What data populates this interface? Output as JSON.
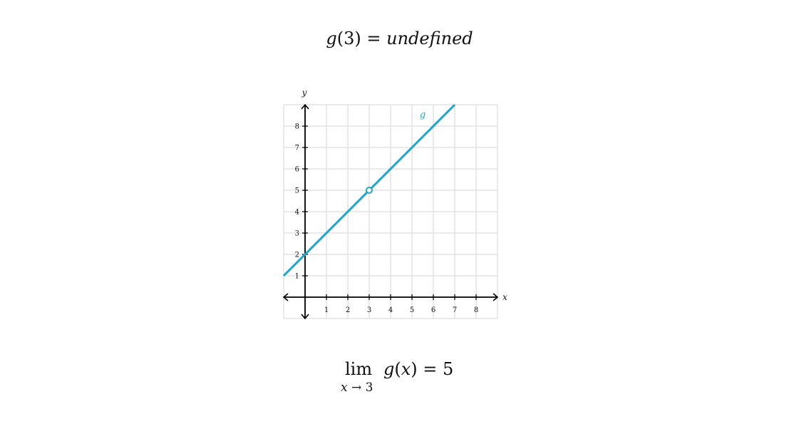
{
  "equations": {
    "top": {
      "func": "g",
      "arg": "3",
      "equals": "=",
      "value": "undefined"
    },
    "bottom": {
      "lim": "lim",
      "var": "x",
      "arrow": "→",
      "approach": "3",
      "func": "g",
      "arg": "x",
      "equals": "=",
      "value": "5"
    }
  },
  "colors": {
    "line": "#1ea6c8",
    "grid": "#e3e3e3",
    "axis": "#000000"
  },
  "chart_data": {
    "type": "line",
    "xlabel": "x",
    "ylabel": "y",
    "xlim": [
      -1,
      9
    ],
    "ylim": [
      -1,
      9
    ],
    "x_ticks": [
      1,
      2,
      3,
      4,
      5,
      6,
      7,
      8
    ],
    "y_ticks": [
      1,
      2,
      3,
      4,
      5,
      6,
      7,
      8
    ],
    "grid": true,
    "series": [
      {
        "name": "g",
        "x": [
          -1,
          7
        ],
        "y": [
          1,
          9
        ],
        "holes": [
          {
            "x": 3,
            "y": 5
          }
        ]
      }
    ]
  }
}
